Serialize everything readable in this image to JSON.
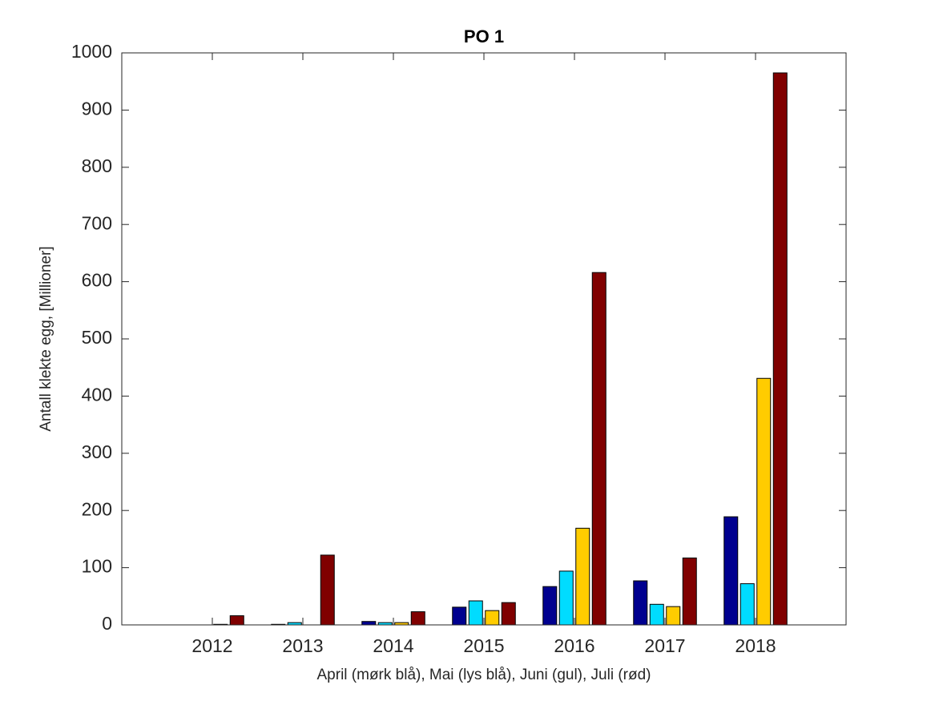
{
  "chart_data": {
    "type": "bar",
    "title": "PO 1",
    "x_label": "April (mørk blå), Mai (lys blå), Juni (gul), Juli (rød)",
    "y_label": "Antall klekte egg, [Millioner]",
    "x": [
      2012,
      2013,
      2014,
      2015,
      2016,
      2017,
      2018
    ],
    "xlim": [
      2011,
      2019
    ],
    "xticks": [
      2012,
      2013,
      2014,
      2015,
      2016,
      2017,
      2018
    ],
    "ylim": [
      0,
      1000
    ],
    "yticks": [
      0,
      100,
      200,
      300,
      400,
      500,
      600,
      700,
      800,
      900,
      1000
    ],
    "grid": false,
    "series": [
      {
        "color": "#00008f",
        "values": [
          0,
          1,
          6,
          31,
          67,
          77,
          189
        ]
      },
      {
        "color": "#00dcff",
        "values": [
          0,
          4,
          4,
          42,
          94,
          36,
          72
        ]
      },
      {
        "color": "#ffcc00",
        "values": [
          1,
          0,
          4,
          25,
          169,
          32,
          431
        ]
      },
      {
        "color": "#800000",
        "values": [
          16,
          122,
          23,
          39,
          616,
          117,
          965
        ]
      }
    ]
  }
}
